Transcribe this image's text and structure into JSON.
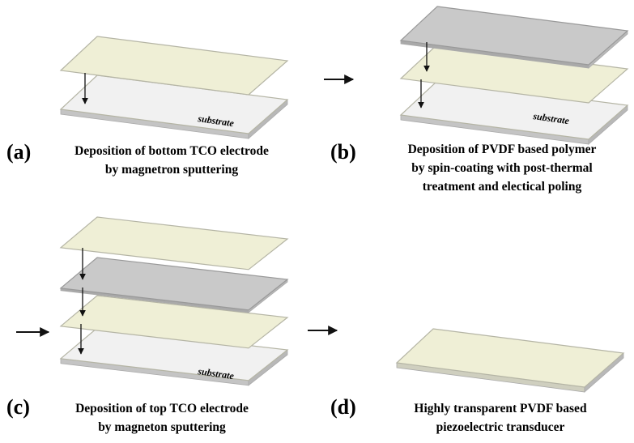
{
  "panels": [
    {
      "label": "(a)",
      "caption": [
        "Deposition of bottom TCO electrode",
        "by magnetron sputtering"
      ],
      "substrate": "substrate"
    },
    {
      "label": "(b)",
      "caption": [
        "Deposition of PVDF based polymer",
        "by spin-coating with post-thermal",
        "treatment and electical poling"
      ],
      "substrate": "substrate"
    },
    {
      "label": "(c)",
      "caption": [
        "Deposition of top TCO electrode",
        "by magneton sputtering"
      ],
      "substrate": "substrate"
    },
    {
      "label": "(d)",
      "caption": [
        "Highly transparent PVDF based",
        "piezoelectric transducer"
      ]
    }
  ]
}
